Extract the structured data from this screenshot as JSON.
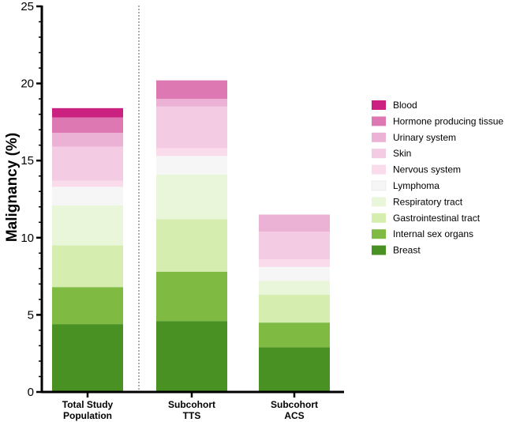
{
  "chart_data": {
    "type": "bar",
    "stacked": true,
    "ylabel": "Malignancy (%)",
    "xlabel": "",
    "ylim": [
      0,
      25
    ],
    "yticks": [
      0,
      5,
      10,
      15,
      20,
      25
    ],
    "categories": [
      [
        "Total Study",
        "Population"
      ],
      [
        "Subcohort",
        "TTS"
      ],
      [
        "Subcohort",
        "ACS"
      ]
    ],
    "separator_after_category": 0,
    "legend_position": "right",
    "series": [
      {
        "name": "Breast",
        "color": "#4a9124",
        "values": [
          4.4,
          4.6,
          2.9
        ]
      },
      {
        "name": "Internal sex organs",
        "color": "#7fbb42",
        "values": [
          2.4,
          3.2,
          1.6
        ]
      },
      {
        "name": "Gastrointestinal tract",
        "color": "#d6edb0",
        "values": [
          2.7,
          3.4,
          1.8
        ]
      },
      {
        "name": "Respiratory tract",
        "color": "#eaf6da",
        "values": [
          2.6,
          2.9,
          0.9
        ]
      },
      {
        "name": "Lymphoma",
        "color": "#f6f6f6",
        "values": [
          1.2,
          1.2,
          0.9
        ]
      },
      {
        "name": "Nervous system",
        "color": "#fadbec",
        "values": [
          0.4,
          0.5,
          0.5
        ]
      },
      {
        "name": "Skin",
        "color": "#f3cce4",
        "values": [
          2.2,
          2.7,
          1.8
        ]
      },
      {
        "name": "Urinary system",
        "color": "#ecb2d6",
        "values": [
          0.9,
          0.5,
          1.1
        ]
      },
      {
        "name": "Hormone producing tissue",
        "color": "#de78b3",
        "values": [
          1.0,
          1.2,
          0.0
        ]
      },
      {
        "name": "Blood",
        "color": "#cb2180",
        "values": [
          0.6,
          0.0,
          0.0
        ]
      }
    ]
  }
}
